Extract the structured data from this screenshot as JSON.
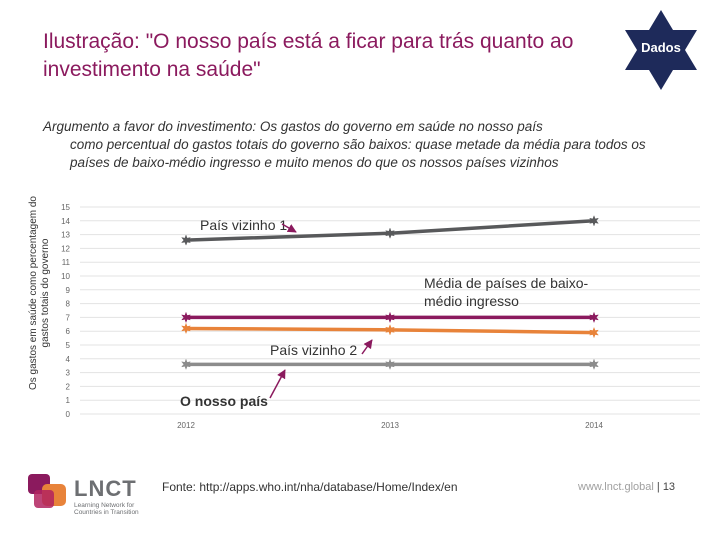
{
  "header": {
    "title": "Ilustração: \"O nosso país está a ficar para trás quanto ao investimento na saúde\"",
    "badge_label": "Dados"
  },
  "argument": {
    "lead": "Argumento a favor do investimento: Os gastos do governo em saúde no nosso país",
    "rest": "como percentual do gastos totais do governo são baixos: quase metade da média para todos os países de baixo-médio ingresso e muito menos do que os nossos países vizinhos"
  },
  "chart_data": {
    "type": "line",
    "title": "",
    "xlabel": "",
    "ylabel": "Os gastos em saúde como percentagem do gastos totais do governo",
    "x": [
      "2012",
      "2013",
      "2014"
    ],
    "ylim": [
      0,
      15
    ],
    "yticks": [
      0,
      1,
      2,
      3,
      4,
      5,
      6,
      7,
      8,
      9,
      10,
      11,
      12,
      13,
      14,
      15
    ],
    "series": [
      {
        "name": "País vizinho 1",
        "values": [
          12.6,
          13.1,
          14.0
        ],
        "color": "#58595b",
        "marker": "star"
      },
      {
        "name": "Média de países de baixo-médio ingresso",
        "values": [
          7.0,
          7.0,
          7.0
        ],
        "color": "#8b1a5e",
        "marker": "star"
      },
      {
        "name": "País vizinho 2",
        "values": [
          6.2,
          6.1,
          5.9
        ],
        "color": "#e8833a",
        "marker": "star"
      },
      {
        "name": "O nosso país",
        "values": [
          3.6,
          3.6,
          3.6
        ],
        "color": "#8c8c8c",
        "marker": "star"
      }
    ],
    "annotations": [
      {
        "label": "País vizinho 1",
        "series": 0
      },
      {
        "label": "Média de países de baixo-médio ingresso",
        "series": 1
      },
      {
        "label": "País vizinho 2",
        "series": 2
      },
      {
        "label": "O nosso país",
        "series": 3
      }
    ]
  },
  "footer": {
    "source": "Fonte:  http://apps.who.int/nha/database/Home/Index/en",
    "website": "www.lnct.global",
    "separator": " | ",
    "page": "13",
    "logo_name": "LNCT",
    "logo_sub": "Learning Network for Countries in Transition"
  },
  "colors": {
    "accent": "#8b1a5e",
    "badge": "#1e2a5a",
    "arrow": "#8b1a5e"
  }
}
